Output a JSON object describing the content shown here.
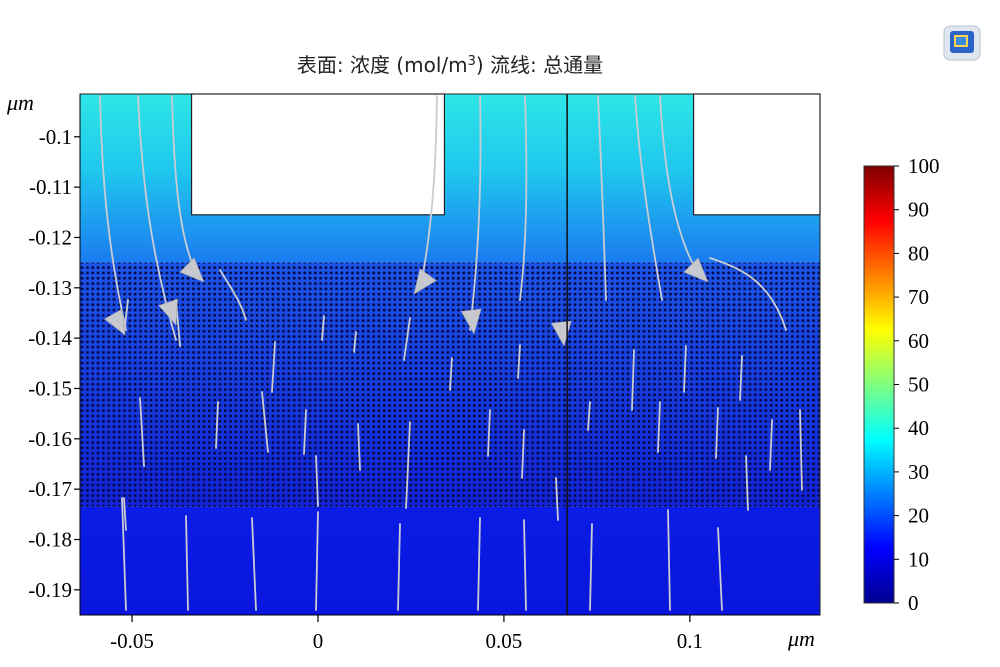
{
  "chart_data": {
    "type": "heatmap",
    "title": "表面: 浓度 (mol/m³)  流线: 总通量",
    "title_parts": {
      "prefix": "表面: 浓度 (mol/m",
      "superscript": "3",
      "suffix": ")  流线: 总通量"
    },
    "x_unit_label": "μm",
    "y_unit_label": "μm",
    "x_ticks": [
      "-0.05",
      "0",
      "0.05",
      "0.1"
    ],
    "x_tick_values": [
      -0.05,
      0,
      0.05,
      0.1
    ],
    "y_ticks": [
      "-0.1",
      "-0.11",
      "-0.12",
      "-0.13",
      "-0.14",
      "-0.15",
      "-0.16",
      "-0.17",
      "-0.18",
      "-0.19"
    ],
    "y_tick_values": [
      -0.1,
      -0.11,
      -0.12,
      -0.13,
      -0.14,
      -0.15,
      -0.16,
      -0.17,
      -0.18,
      -0.19
    ],
    "xlim": [
      -0.064,
      0.135
    ],
    "ylim": [
      -0.195,
      -0.0915
    ],
    "colorbar": {
      "ticks": [
        "0",
        "10",
        "20",
        "30",
        "40",
        "50",
        "60",
        "70",
        "80",
        "90",
        "100"
      ],
      "tick_values": [
        0,
        10,
        20,
        30,
        40,
        50,
        60,
        70,
        80,
        90,
        100
      ],
      "range": [
        0,
        100
      ],
      "colormap": "jet"
    },
    "regions": [
      {
        "name": "upper-electrolyte",
        "y_range": [
          -0.125,
          -0.0915
        ],
        "concentration_range": [
          24,
          32
        ]
      },
      {
        "name": "porous-layer",
        "y_range": [
          -0.1735,
          -0.125
        ],
        "concentration_range": [
          8,
          18
        ]
      },
      {
        "name": "lower-layer",
        "y_range": [
          -0.195,
          -0.1735
        ],
        "concentration_range": [
          8,
          10
        ]
      }
    ],
    "blocks": [
      {
        "name": "block-left",
        "x_range": [
          -0.034,
          0.034
        ],
        "y_range": [
          -0.1155,
          -0.0915
        ]
      },
      {
        "name": "block-right",
        "x_range": [
          0.101,
          0.135
        ],
        "y_range": [
          -0.1155,
          -0.0915
        ]
      }
    ],
    "divider_x": 0.067,
    "grid": false,
    "legend": "colorbar-right"
  }
}
